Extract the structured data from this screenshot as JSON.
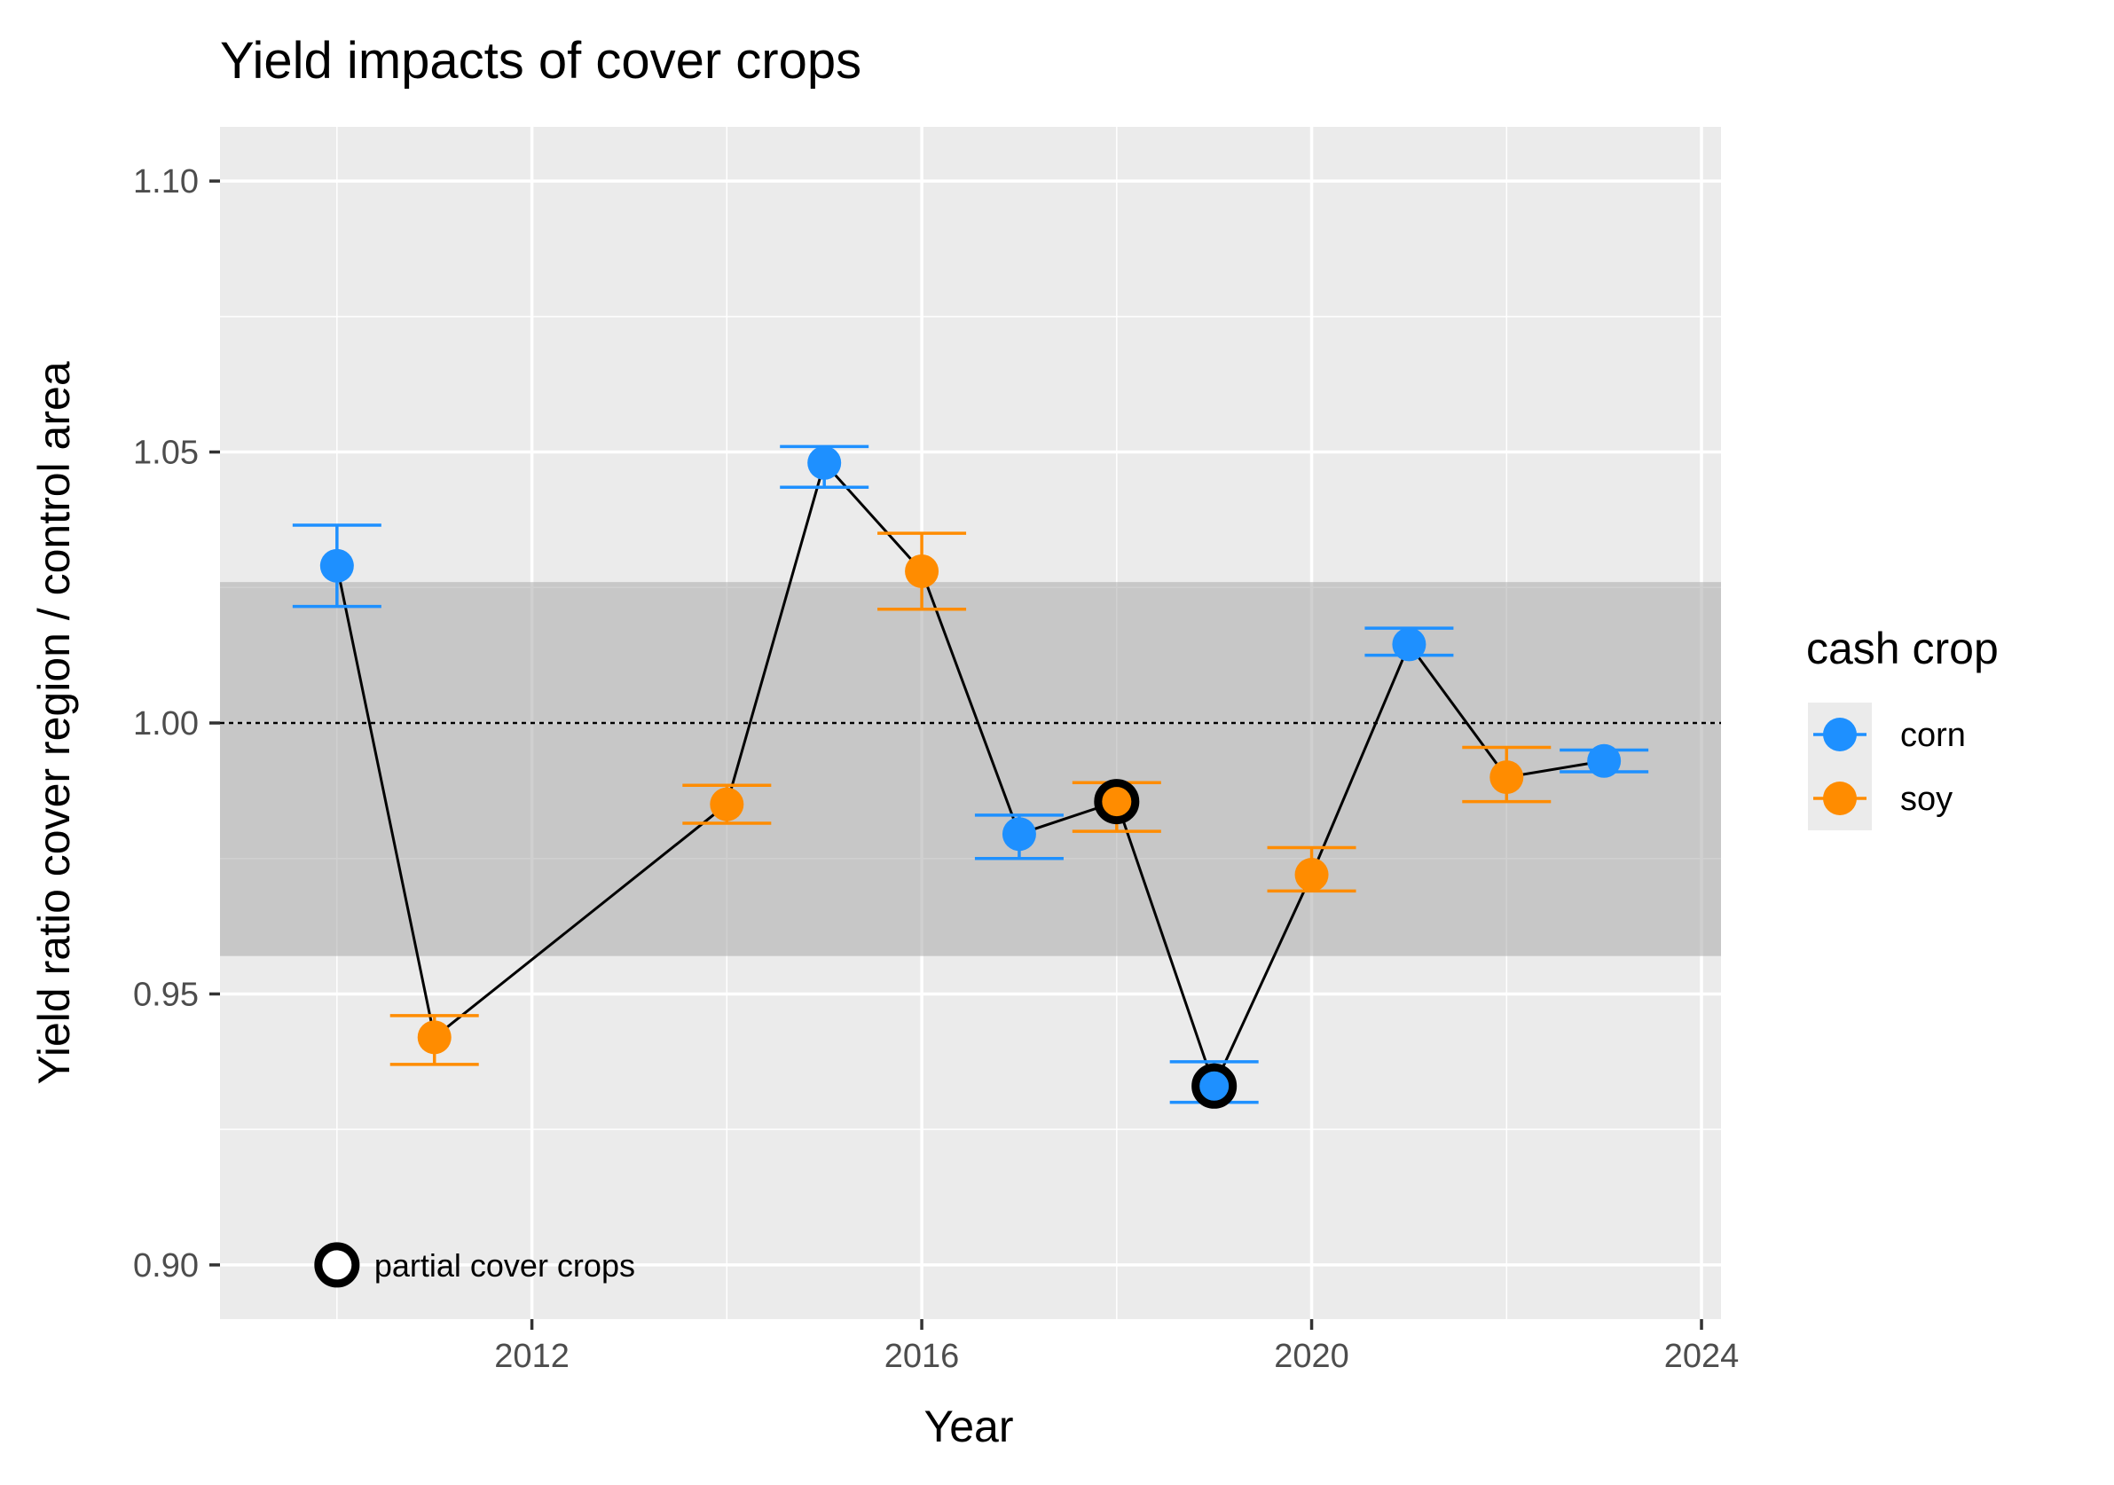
{
  "chart_data": {
    "type": "scatter",
    "title": "Yield impacts of cover crops",
    "xlabel": "Year",
    "ylabel": "Yield ratio cover region / control area",
    "xlim": [
      2008.8,
      2024.2
    ],
    "ylim": [
      0.89,
      1.11
    ],
    "x_ticks": [
      2012,
      2016,
      2020,
      2024
    ],
    "x_tick_labels": [
      "2012",
      "2016",
      "2020",
      "2024"
    ],
    "y_ticks": [
      0.9,
      0.95,
      1.0,
      1.05,
      1.1
    ],
    "y_tick_labels": [
      "0.90",
      "0.95",
      "1.00",
      "1.05",
      "1.10"
    ],
    "grid": true,
    "reference_line": 1.0,
    "shaded_band": [
      0.957,
      1.026
    ],
    "legend": {
      "title": "cash crop",
      "position": "right",
      "items": [
        {
          "label": "corn",
          "color": "#1e90ff"
        },
        {
          "label": "soy",
          "color": "#ff8c00"
        }
      ]
    },
    "annotation": {
      "text": "partial cover crops",
      "x": 2010,
      "y": 0.9
    },
    "points": [
      {
        "year": 2010,
        "value": 1.029,
        "lower": 1.0215,
        "upper": 1.0365,
        "crop": "corn",
        "partial": false
      },
      {
        "year": 2011,
        "value": 0.942,
        "lower": 0.937,
        "upper": 0.946,
        "crop": "soy",
        "partial": false
      },
      {
        "year": 2014,
        "value": 0.985,
        "lower": 0.9815,
        "upper": 0.9885,
        "crop": "soy",
        "partial": false
      },
      {
        "year": 2015,
        "value": 1.048,
        "lower": 1.0435,
        "upper": 1.051,
        "crop": "corn",
        "partial": false
      },
      {
        "year": 2016,
        "value": 1.028,
        "lower": 1.021,
        "upper": 1.035,
        "crop": "soy",
        "partial": false
      },
      {
        "year": 2017,
        "value": 0.9795,
        "lower": 0.975,
        "upper": 0.983,
        "crop": "corn",
        "partial": false
      },
      {
        "year": 2018,
        "value": 0.9855,
        "lower": 0.98,
        "upper": 0.989,
        "crop": "soy",
        "partial": true
      },
      {
        "year": 2019,
        "value": 0.933,
        "lower": 0.93,
        "upper": 0.9375,
        "crop": "corn",
        "partial": true
      },
      {
        "year": 2020,
        "value": 0.972,
        "lower": 0.969,
        "upper": 0.977,
        "crop": "soy",
        "partial": false
      },
      {
        "year": 2021,
        "value": 1.0145,
        "lower": 1.0125,
        "upper": 1.0175,
        "crop": "corn",
        "partial": false
      },
      {
        "year": 2022,
        "value": 0.99,
        "lower": 0.9855,
        "upper": 0.9955,
        "crop": "soy",
        "partial": false
      },
      {
        "year": 2023,
        "value": 0.993,
        "lower": 0.991,
        "upper": 0.995,
        "crop": "corn",
        "partial": false
      }
    ]
  }
}
